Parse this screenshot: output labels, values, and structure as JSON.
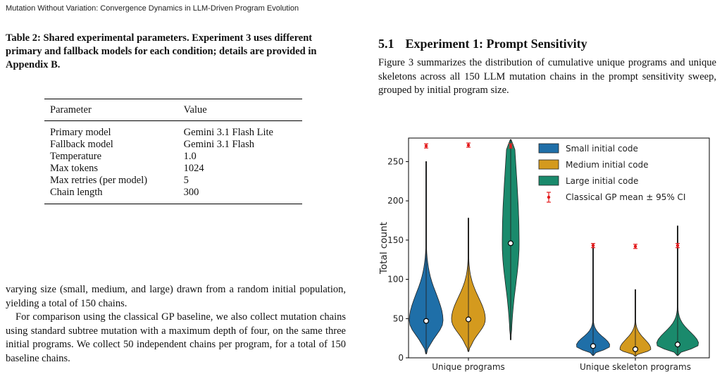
{
  "running_head": "Mutation Without Variation: Convergence Dynamics in LLM-Driven Program Evolution",
  "table": {
    "caption": "Table 2: Shared experimental parameters. Experiment 3 uses different primary and fallback models for each condition; details are provided in Appendix B.",
    "headers": [
      "Parameter",
      "Value"
    ],
    "rows": [
      [
        "Primary model",
        "Gemini 3.1 Flash Lite"
      ],
      [
        "Fallback model",
        "Gemini 3.1 Flash"
      ],
      [
        "Temperature",
        "1.0"
      ],
      [
        "Max tokens",
        "1024"
      ],
      [
        "Max retries (per model)",
        "5"
      ],
      [
        "Chain length",
        "300"
      ]
    ]
  },
  "body": {
    "para1": "varying size (small, medium, and large) drawn from a random initial population, yielding a total of 150 chains.",
    "para2": "For comparison using the classical GP baseline, we also collect mutation chains using standard subtree mutation with a maximum depth of four, on the same three initial programs. We collect 50 independent chains per program, for a total of 150 baseline chains."
  },
  "section": {
    "number": "5.1",
    "title": "Experiment 1: Prompt Sensitivity",
    "text": "Figure 3 summarizes the distribution of cumulative unique programs and unique skeletons across all 150 LLM mutation chains in the prompt sensitivity sweep, grouped by initial program size."
  },
  "chart_data": {
    "type": "violin",
    "ylabel": "Total count",
    "ylim": [
      0,
      280
    ],
    "yticks": [
      0,
      50,
      100,
      150,
      200,
      250
    ],
    "groups": [
      "Unique programs",
      "Unique skeleton programs"
    ],
    "series": [
      {
        "name": "Small initial code",
        "color": "#1f6fa8",
        "values": [
          {
            "group": "Unique programs",
            "min": 5,
            "max": 250,
            "median": 47
          },
          {
            "group": "Unique skeleton programs",
            "min": 3,
            "max": 145,
            "median": 15
          }
        ]
      },
      {
        "name": "Medium initial code",
        "color": "#d49a1e",
        "values": [
          {
            "group": "Unique programs",
            "min": 8,
            "max": 178,
            "median": 49
          },
          {
            "group": "Unique skeleton programs",
            "min": 2,
            "max": 87,
            "median": 11
          }
        ]
      },
      {
        "name": "Large initial code",
        "color": "#1a8a6c",
        "values": [
          {
            "group": "Unique programs",
            "min": 23,
            "max": 278,
            "median": 146
          },
          {
            "group": "Unique skeleton programs",
            "min": 3,
            "max": 168,
            "median": 17
          }
        ]
      }
    ],
    "baseline": {
      "name": "Classical GP mean ± 95% CI",
      "color": "#e31a1c",
      "values": [
        {
          "group": "Unique programs",
          "series": "Small initial code",
          "mean": 270
        },
        {
          "group": "Unique programs",
          "series": "Medium initial code",
          "mean": 271
        },
        {
          "group": "Unique programs",
          "series": "Large initial code",
          "mean": 270
        },
        {
          "group": "Unique skeleton programs",
          "series": "Small initial code",
          "mean": 143
        },
        {
          "group": "Unique skeleton programs",
          "series": "Medium initial code",
          "mean": 142
        },
        {
          "group": "Unique skeleton programs",
          "series": "Large initial code",
          "mean": 143
        }
      ]
    },
    "legend_position": "top-right",
    "grid": false
  }
}
